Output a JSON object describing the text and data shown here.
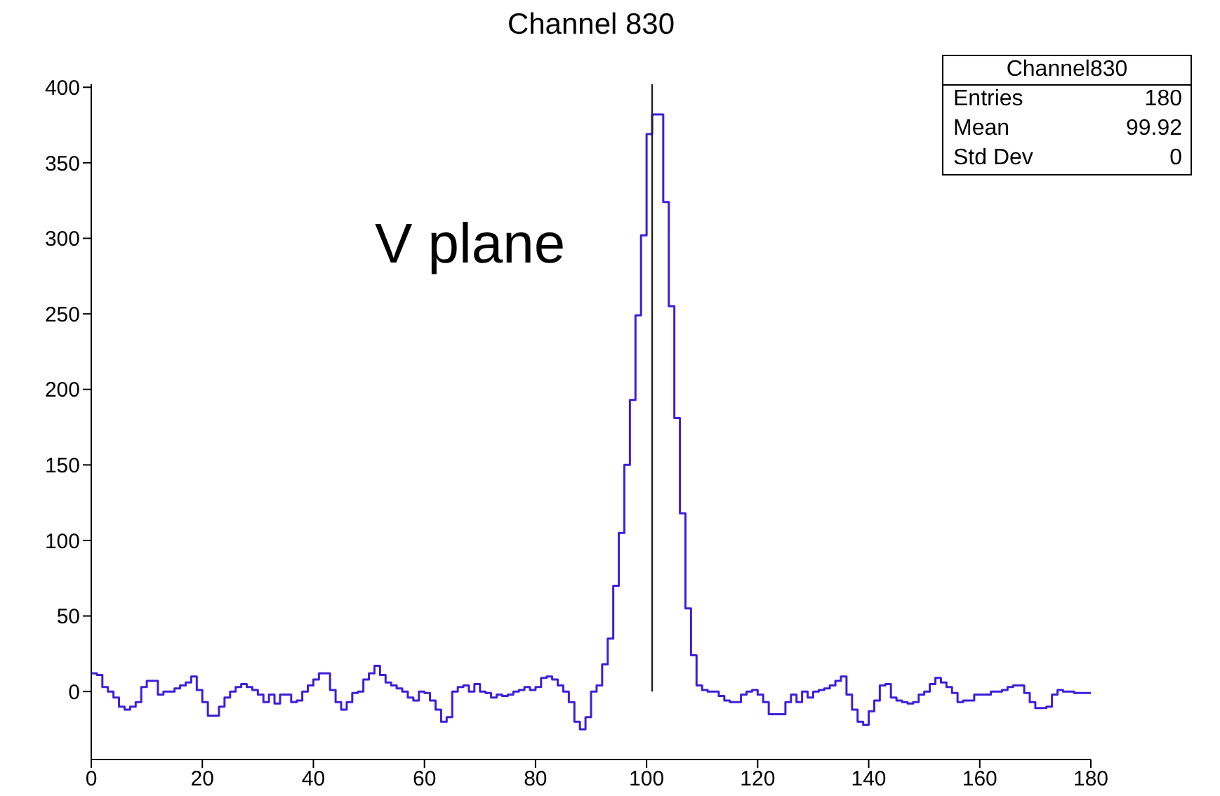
{
  "chart_data": {
    "type": "histogram",
    "title": "Channel 830",
    "bins": [
      0,
      1,
      2,
      3,
      4,
      5,
      6,
      7,
      8,
      9,
      10,
      11,
      12,
      13,
      14,
      15,
      16,
      17,
      18,
      19,
      20,
      21,
      22,
      23,
      24,
      25,
      26,
      27,
      28,
      29,
      30,
      31,
      32,
      33,
      34,
      35,
      36,
      37,
      38,
      39,
      40,
      41,
      42,
      43,
      44,
      45,
      46,
      47,
      48,
      49,
      50,
      51,
      52,
      53,
      54,
      55,
      56,
      57,
      58,
      59,
      60,
      61,
      62,
      63,
      64,
      65,
      66,
      67,
      68,
      69,
      70,
      71,
      72,
      73,
      74,
      75,
      76,
      77,
      78,
      79,
      80,
      81,
      82,
      83,
      84,
      85,
      86,
      87,
      88,
      89,
      90,
      91,
      92,
      93,
      94,
      95,
      96,
      97,
      98,
      99,
      100,
      101,
      102,
      103,
      104,
      105,
      106,
      107,
      108,
      109,
      110,
      111,
      112,
      113,
      114,
      115,
      116,
      117,
      118,
      119,
      120,
      121,
      122,
      123,
      124,
      125,
      126,
      127,
      128,
      129,
      130,
      131,
      132,
      133,
      134,
      135,
      136,
      137,
      138,
      139,
      140,
      141,
      142,
      143,
      144,
      145,
      146,
      147,
      148,
      149,
      150,
      151,
      152,
      153,
      154,
      155,
      156,
      157,
      158,
      159,
      160,
      161,
      162,
      163,
      164,
      165,
      166,
      167,
      168,
      169,
      170,
      171,
      172,
      173,
      174,
      175,
      176,
      177,
      178,
      179,
      180
    ],
    "values": [
      12,
      11,
      3,
      0,
      -4,
      -10,
      -12,
      -10,
      -7,
      3,
      7,
      7,
      -2,
      0,
      0,
      2,
      4,
      6,
      10,
      1,
      -7,
      -16,
      -16,
      -10,
      -4,
      0,
      3,
      5,
      3,
      1,
      -2,
      -7,
      -2,
      -8,
      -2,
      -2,
      -7,
      -6,
      0,
      4,
      8,
      12,
      12,
      1,
      -7,
      -12,
      -7,
      -1,
      0,
      8,
      12,
      17,
      11,
      6,
      4,
      2,
      0,
      -4,
      -6,
      0,
      -1,
      -6,
      -12,
      -20,
      -17,
      0,
      3,
      4,
      0,
      5,
      0,
      -1,
      -4,
      -2,
      -3,
      -2,
      0,
      1,
      3,
      1,
      3,
      9,
      10,
      8,
      4,
      0,
      -7,
      -20,
      -25,
      -17,
      0,
      4,
      18,
      35,
      70,
      105,
      150,
      193,
      249,
      302,
      369,
      382,
      382,
      324,
      255,
      181,
      118,
      55,
      24,
      4,
      1,
      0,
      0,
      -3,
      -6,
      -7,
      -7,
      -2,
      0,
      1,
      -2,
      -7,
      -15,
      -15,
      -15,
      -7,
      -2,
      -7,
      0,
      -4,
      0,
      1,
      2,
      4,
      7,
      10,
      -2,
      -12,
      -20,
      -22,
      -13,
      -6,
      4,
      5,
      -4,
      -6,
      -7,
      -8,
      -7,
      -2,
      0,
      5,
      9,
      6,
      3,
      -1,
      -7,
      -6,
      -6,
      -2,
      -2,
      -2,
      0,
      0,
      1,
      3,
      4,
      4,
      -1,
      -7,
      -11,
      -11,
      -10,
      -2,
      1,
      0,
      0,
      -1,
      -1,
      -1
    ],
    "color": "#3d1fd9",
    "xlim": [
      0,
      180
    ],
    "xticks": [
      0,
      20,
      40,
      60,
      80,
      100,
      120,
      140,
      160,
      180
    ],
    "ylim": [
      -45,
      402
    ],
    "yticks": [
      0,
      50,
      100,
      150,
      200,
      250,
      300,
      350,
      400
    ],
    "ref_lines": [
      {
        "axis": "x",
        "value": 101,
        "color": "#222222"
      }
    ],
    "annotations": [
      "V plane",
      "Channel830",
      "Entries",
      "180",
      "Mean",
      "99.92",
      "Std Dev",
      "0"
    ],
    "grid": false,
    "legend": false
  }
}
